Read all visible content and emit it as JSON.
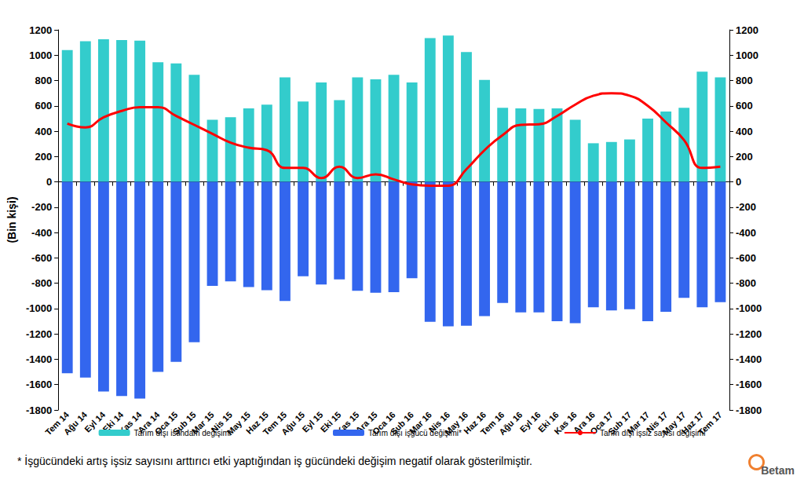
{
  "chart_data": {
    "type": "bar",
    "y_label": "(Bin kişi)",
    "annotations": [
      "* İşgücündeki artış işsiz sayısını arttırıcı etki yaptığından iş gücündeki değişim negatif olarak gösterilmiştir.",
      "Betam"
    ],
    "categories": [
      "Tem 14",
      "Ağu 14",
      "Eyl 14",
      "Eki 14",
      "Kas 14",
      "Ara 14",
      "Oca 15",
      "Şub 15",
      "Mar 15",
      "Nis 15",
      "May 15",
      "Haz 15",
      "Tem 15",
      "Ağu 15",
      "Eyl 15",
      "Eki 15",
      "Kas 15",
      "Ara 15",
      "Oca 16",
      "Şub 16",
      "Mar 16",
      "Nis 16",
      "May 16",
      "Haz 16",
      "Tem 16",
      "Ağu 16",
      "Eyl 16",
      "Eki 16",
      "Kas 16",
      "Ara 16",
      "Oca 17",
      "Şub 17",
      "Mar 17",
      "Nis 17",
      "May 17",
      "Haz 17",
      "Tem 17"
    ],
    "series": [
      {
        "name": "Tarım dışı istihdam değişimi",
        "type": "bar",
        "color": "#33cccc",
        "values": [
          1040,
          1110,
          1125,
          1120,
          1115,
          945,
          935,
          845,
          490,
          510,
          580,
          610,
          825,
          635,
          785,
          645,
          825,
          810,
          845,
          785,
          1135,
          1155,
          1025,
          805,
          585,
          580,
          575,
          580,
          490,
          305,
          315,
          335,
          500,
          555,
          585,
          870,
          825
        ]
      },
      {
        "name": "Tarım dışı işgücü değişimi*",
        "type": "bar",
        "color": "#3366ee",
        "values": [
          -1510,
          -1545,
          -1655,
          -1690,
          -1710,
          -1500,
          -1420,
          -1265,
          -820,
          -785,
          -830,
          -855,
          -940,
          -745,
          -810,
          -770,
          -860,
          -875,
          -870,
          -760,
          -1105,
          -1140,
          -1135,
          -1060,
          -955,
          -1030,
          -1030,
          -1100,
          -1115,
          -990,
          -1015,
          -1005,
          -1100,
          -1025,
          -915,
          -990,
          -950
        ]
      },
      {
        "name": "Tarım dışı işsiz sayısı değişimi",
        "type": "line",
        "color": "#ff0000",
        "axis": "y2",
        "line_style": "solid",
        "marker": "none",
        "values": [
          460,
          430,
          510,
          560,
          590,
          590,
          520,
          450,
          380,
          310,
          270,
          250,
          110,
          110,
          30,
          120,
          30,
          60,
          20,
          -20,
          -30,
          -30,
          100,
          250,
          370,
          450,
          455,
          520,
          610,
          680,
          700,
          680,
          600,
          470,
          330,
          110,
          120
        ]
      }
    ],
    "ylim": [
      -1800,
      1200
    ],
    "yticks": [
      -1800,
      -1600,
      -1400,
      -1200,
      -1000,
      -800,
      -600,
      -400,
      -200,
      0,
      200,
      400,
      600,
      800,
      1000,
      1200
    ],
    "y2lim": [
      -1800,
      1200
    ],
    "y2ticks": [
      -1800,
      -1600,
      -1400,
      -1200,
      -1000,
      -800,
      -600,
      -400,
      -200,
      0,
      200,
      400,
      600,
      800,
      1000,
      1200
    ],
    "grid": false,
    "legend": "bottom",
    "stacked": false
  }
}
